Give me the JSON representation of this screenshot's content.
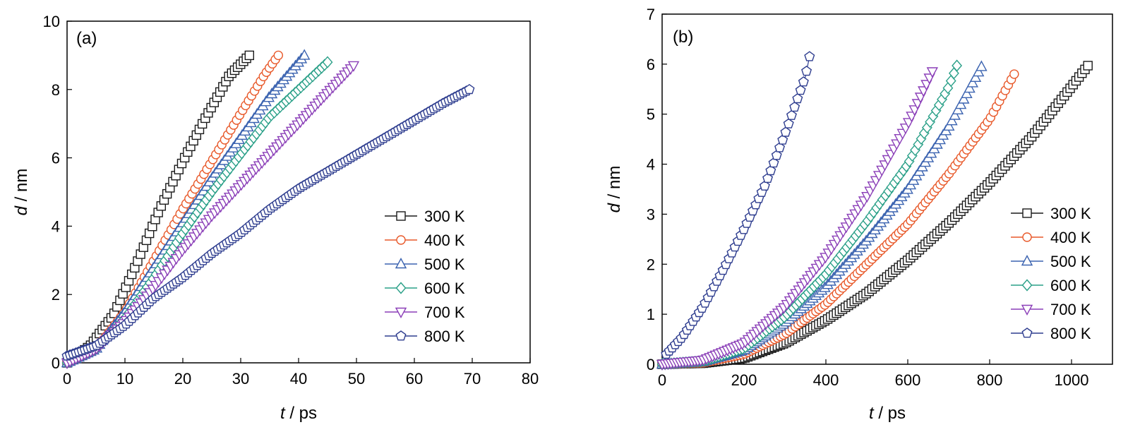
{
  "chart_data": [
    {
      "type": "line",
      "panel_label": "(a)",
      "xlabel_var": "t",
      "xlabel_unit": " / ps",
      "ylabel_var": "d",
      "ylabel_unit": " / nm",
      "xlim": [
        0,
        80
      ],
      "ylim": [
        0,
        10
      ],
      "xticks": [
        "0",
        "10",
        "20",
        "30",
        "40",
        "50",
        "60",
        "70",
        "80"
      ],
      "yticks": [
        "0",
        "2",
        "4",
        "6",
        "8",
        "10"
      ],
      "legend_position": "bottom-right",
      "series": [
        {
          "name": "300 K",
          "color": "#1a1a1a",
          "marker": "square",
          "x": [
            0,
            4,
            8,
            12,
            16,
            20,
            24,
            28,
            31.5
          ],
          "y": [
            0,
            0.5,
            1.4,
            2.9,
            4.5,
            5.9,
            7.2,
            8.4,
            9.0
          ]
        },
        {
          "name": "400 K",
          "color": "#e8592a",
          "marker": "circle",
          "x": [
            0,
            5,
            10,
            15,
            20,
            25,
            30,
            34,
            36.5
          ],
          "y": [
            0,
            0.4,
            1.5,
            3.0,
            4.5,
            5.9,
            7.3,
            8.4,
            9.0
          ]
        },
        {
          "name": "500 K",
          "color": "#3b63b0",
          "marker": "triangle-up",
          "x": [
            0,
            5,
            10,
            15,
            20,
            25,
            30,
            35,
            41
          ],
          "y": [
            0,
            0.4,
            1.5,
            2.8,
            4.1,
            5.4,
            6.6,
            7.8,
            9.0
          ]
        },
        {
          "name": "600 K",
          "color": "#2aa088",
          "marker": "diamond",
          "x": [
            0,
            5,
            10,
            15,
            20,
            25,
            30,
            35,
            40,
            45
          ],
          "y": [
            0,
            0.4,
            1.3,
            2.5,
            3.8,
            5.0,
            6.1,
            7.2,
            8.0,
            8.8
          ]
        },
        {
          "name": "700 K",
          "color": "#8b3fb8",
          "marker": "triangle-down",
          "x": [
            0,
            5,
            10,
            15,
            20,
            25,
            30,
            35,
            40,
            45,
            49.5
          ],
          "y": [
            0,
            0.4,
            1.2,
            2.2,
            3.3,
            4.3,
            5.2,
            6.1,
            7.0,
            7.9,
            8.7
          ]
        },
        {
          "name": "800 K",
          "color": "#2e3d8f",
          "marker": "pentagon",
          "x": [
            0,
            5,
            10,
            15,
            20,
            25,
            30,
            35,
            40,
            45,
            50,
            55,
            60,
            65,
            69.5
          ],
          "y": [
            0.2,
            0.5,
            1.1,
            1.9,
            2.5,
            3.2,
            3.8,
            4.5,
            5.1,
            5.6,
            6.1,
            6.6,
            7.1,
            7.6,
            8.0
          ]
        }
      ]
    },
    {
      "type": "line",
      "panel_label": "(b)",
      "xlabel_var": "t",
      "xlabel_unit": " / ps",
      "ylabel_var": "d",
      "ylabel_unit": " / nm",
      "xlim": [
        0,
        1100
      ],
      "ylim": [
        0,
        7
      ],
      "xticks": [
        "0",
        "200",
        "400",
        "600",
        "800",
        "1000"
      ],
      "yticks": [
        "0",
        "1",
        "2",
        "3",
        "4",
        "5",
        "6",
        "7"
      ],
      "legend_position": "bottom-right",
      "series": [
        {
          "name": "300 K",
          "color": "#1a1a1a",
          "marker": "square",
          "x": [
            0,
            100,
            200,
            300,
            400,
            500,
            600,
            700,
            800,
            900,
            1000,
            1040
          ],
          "y": [
            0,
            0.02,
            0.12,
            0.42,
            0.88,
            1.42,
            2.08,
            2.82,
            3.63,
            4.52,
            5.55,
            5.97
          ]
        },
        {
          "name": "400 K",
          "color": "#e8592a",
          "marker": "circle",
          "x": [
            0,
            100,
            200,
            300,
            400,
            500,
            600,
            700,
            800,
            860
          ],
          "y": [
            0,
            0.03,
            0.2,
            0.6,
            1.2,
            2.0,
            2.8,
            3.8,
            4.9,
            5.8
          ]
        },
        {
          "name": "500 K",
          "color": "#3b63b0",
          "marker": "triangle-up",
          "x": [
            0,
            100,
            200,
            300,
            400,
            500,
            600,
            700,
            780
          ],
          "y": [
            0,
            0.05,
            0.28,
            0.82,
            1.55,
            2.48,
            3.5,
            4.75,
            5.95
          ]
        },
        {
          "name": "600 K",
          "color": "#2aa088",
          "marker": "diamond",
          "x": [
            0,
            100,
            200,
            300,
            400,
            500,
            600,
            700,
            720
          ],
          "y": [
            0,
            0.06,
            0.32,
            0.95,
            1.8,
            2.85,
            4.0,
            5.55,
            5.97
          ]
        },
        {
          "name": "700 K",
          "color": "#8b3fb8",
          "marker": "triangle-down",
          "x": [
            0,
            100,
            200,
            300,
            400,
            500,
            600,
            660
          ],
          "y": [
            0,
            0.08,
            0.42,
            1.15,
            2.15,
            3.35,
            4.8,
            5.85
          ]
        },
        {
          "name": "800 K",
          "color": "#2e3d8f",
          "marker": "pentagon",
          "x": [
            10,
            50,
            100,
            150,
            200,
            250,
            300,
            350,
            360
          ],
          "y": [
            0.2,
            0.55,
            1.15,
            1.9,
            2.7,
            3.55,
            4.6,
            5.75,
            6.15
          ]
        }
      ]
    }
  ]
}
